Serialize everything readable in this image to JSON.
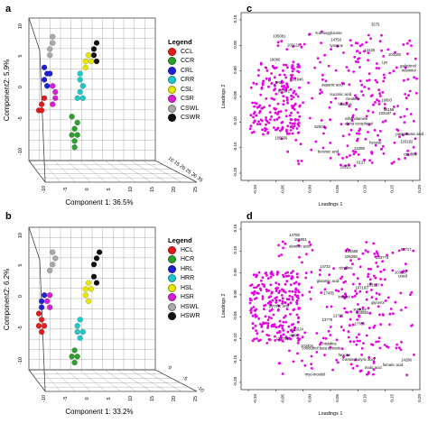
{
  "panels": {
    "a": {
      "letter": "a",
      "xlabel": "Component 1: 36.5%",
      "ylabel": "Component2: 5.9%",
      "legend_title": "Legend",
      "legend": [
        {
          "name": "CCL",
          "color": "#e41a1c"
        },
        {
          "name": "CCR",
          "color": "#2ca02c"
        },
        {
          "name": "CRL",
          "color": "#1f1fd6"
        },
        {
          "name": "CRR",
          "color": "#1fc8c8"
        },
        {
          "name": "CSL",
          "color": "#e6e600"
        },
        {
          "name": "CSR",
          "color": "#d61fd6"
        },
        {
          "name": "CSWL",
          "color": "#a9a9a9"
        },
        {
          "name": "CSWR",
          "color": "#111111"
        }
      ],
      "xticks": [
        "-10",
        "-5",
        "0",
        "5",
        "10",
        "15",
        "20",
        "25"
      ],
      "yticks": [
        "-10",
        "-5",
        "0",
        "5",
        "10"
      ],
      "zticks": [
        "10",
        "15",
        "20",
        "25",
        "30",
        "35"
      ]
    },
    "b": {
      "letter": "b",
      "xlabel": "Component 1: 33.2%",
      "ylabel": "Component2: 6.2%",
      "legend_title": "Legend",
      "legend": [
        {
          "name": "HCL",
          "color": "#e41a1c"
        },
        {
          "name": "HCR",
          "color": "#2ca02c"
        },
        {
          "name": "HRL",
          "color": "#1f1fd6"
        },
        {
          "name": "HRR",
          "color": "#1fc8c8"
        },
        {
          "name": "HSL",
          "color": "#e6e600"
        },
        {
          "name": "HSR",
          "color": "#d61fd6"
        },
        {
          "name": "HSWL",
          "color": "#a9a9a9"
        },
        {
          "name": "HSWR",
          "color": "#111111"
        }
      ],
      "xticks": [
        "-10",
        "-5",
        "0",
        "5",
        "10",
        "15",
        "20",
        "25"
      ],
      "yticks": [
        "-10",
        "-5",
        "0",
        "5",
        "10"
      ],
      "zticks": [
        "0",
        "-5",
        "-10"
      ]
    },
    "c": {
      "letter": "c",
      "xlabel": "Loadings 1",
      "ylabel": "Loadings 2",
      "xticks": [
        "-0.10",
        "-0.05",
        "0.00",
        "0.05",
        "0.10",
        "0.15",
        "0.20"
      ],
      "yticks": [
        "-0.20",
        "-0.15",
        "-0.10",
        "-0.05",
        "0.00",
        "0.05",
        "0.10"
      ],
      "annotations": [
        "3275",
        "6-deoxyglucose",
        "105081",
        "14750",
        "tyrosine",
        "103121",
        "12426",
        "103160",
        "16060",
        "Lys",
        "galactinol",
        "mannitol",
        "81646",
        "pan",
        "aspartic acid",
        "103172",
        "succinic acid",
        "creatine",
        "16093",
        "histidine",
        "65156",
        "103187",
        "ethanolamine",
        "alpha tocopherol",
        "62504",
        "pantothenic acid",
        "105556",
        "hexose",
        "103182",
        "22288",
        "benzoic acid",
        "citrulline",
        "6127",
        "18225"
      ]
    },
    "d": {
      "letter": "d",
      "xlabel": "Loadings 1",
      "ylabel": "Loadings 2",
      "xticks": [
        "-0.10",
        "-0.05",
        "0.00",
        "0.05",
        "0.10",
        "0.15",
        "0.20"
      ],
      "yticks": [
        "-0.20",
        "-0.15",
        "-0.10",
        "-0.05",
        "0.00",
        "0.05",
        "0.10",
        "0.15"
      ],
      "annotations": [
        "14750",
        "105081",
        "alantoic acid",
        "62?17",
        "131558",
        "106266",
        "133??4",
        "14722",
        "citrulline",
        "103187",
        "uracil",
        "glutamic acid",
        "103127",
        "107183",
        "17435",
        "inositol",
        "glycerol",
        "glycolic acid",
        "sucrose",
        "103082",
        "11??6",
        "13??0",
        "1??86",
        "115524",
        "urate",
        "13?796",
        "histidine",
        "102404",
        "conduritol beta epoxide",
        "hexose",
        "14296",
        "4-aminobutyric acid",
        "fumaric acid",
        "malic acid",
        "myo-inositol"
      ]
    }
  },
  "chart_data": [
    {
      "type": "scatter",
      "title": "",
      "xlabel": "Component 1: 36.5%",
      "ylabel": "Component2: 5.9%",
      "xlim": [
        -10,
        25
      ],
      "ylim": [
        -10,
        10
      ],
      "series": [
        {
          "name": "CCL",
          "color": "#e41a1c",
          "points": [
            [
              -9,
              -3
            ],
            [
              -8,
              -2
            ],
            [
              -7,
              -1
            ],
            [
              -8,
              -3
            ]
          ]
        },
        {
          "name": "CCR",
          "color": "#2ca02c",
          "points": [
            [
              3,
              -7
            ],
            [
              4,
              -8
            ],
            [
              4,
              -6
            ],
            [
              5,
              -7
            ],
            [
              5,
              -5
            ],
            [
              3,
              -4
            ],
            [
              4,
              -9
            ]
          ]
        },
        {
          "name": "CRL",
          "color": "#1f1fd6",
          "points": [
            [
              -7,
              2
            ],
            [
              -6,
              3
            ],
            [
              -7,
              4
            ],
            [
              -6,
              1
            ],
            [
              -5,
              3
            ]
          ]
        },
        {
          "name": "CRR",
          "color": "#1fc8c8",
          "points": [
            [
              6,
              2
            ],
            [
              7,
              1
            ],
            [
              6,
              0
            ],
            [
              5,
              -1
            ],
            [
              7,
              -1
            ],
            [
              6,
              3
            ]
          ]
        },
        {
          "name": "CSL",
          "color": "#e6e600",
          "points": [
            [
              8,
              5
            ],
            [
              9,
              6
            ],
            [
              8,
              4
            ],
            [
              10,
              5
            ]
          ]
        },
        {
          "name": "CSR",
          "color": "#d61fd6",
          "points": [
            [
              -3,
              0
            ],
            [
              -4,
              1
            ],
            [
              -3,
              -1
            ],
            [
              -4,
              -2
            ]
          ]
        },
        {
          "name": "CSWL",
          "color": "#a9a9a9",
          "points": [
            [
              -5,
              7
            ],
            [
              -4,
              8
            ],
            [
              -5,
              6
            ],
            [
              -4,
              9
            ]
          ]
        },
        {
          "name": "CSWR",
          "color": "#111111",
          "points": [
            [
              11,
              7
            ],
            [
              12,
              8
            ],
            [
              11,
              6
            ],
            [
              12,
              5
            ]
          ]
        }
      ]
    },
    {
      "type": "scatter",
      "title": "",
      "xlabel": "Component 1: 33.2%",
      "ylabel": "Component2: 6.2%",
      "xlim": [
        -10,
        25
      ],
      "ylim": [
        -10,
        10
      ],
      "series": [
        {
          "name": "HCL",
          "color": "#e41a1c",
          "points": [
            [
              -9,
              -4
            ],
            [
              -8,
              -3
            ],
            [
              -9,
              -2
            ],
            [
              -8,
              -5
            ],
            [
              -7,
              -4
            ]
          ]
        },
        {
          "name": "HCR",
          "color": "#2ca02c",
          "points": [
            [
              3,
              -9
            ],
            [
              4,
              -8
            ],
            [
              5,
              -9
            ],
            [
              4,
              -10
            ]
          ]
        },
        {
          "name": "HRL",
          "color": "#1f1fd6",
          "points": [
            [
              -8,
              0
            ],
            [
              -7,
              1
            ],
            [
              -8,
              -1
            ]
          ]
        },
        {
          "name": "HRR",
          "color": "#1fc8c8",
          "points": [
            [
              5,
              -5
            ],
            [
              6,
              -6
            ],
            [
              5,
              -4
            ],
            [
              6,
              -3
            ],
            [
              7,
              -5
            ]
          ]
        },
        {
          "name": "HSL",
          "color": "#e6e600",
          "points": [
            [
              8,
              2
            ],
            [
              9,
              3
            ],
            [
              8,
              1
            ],
            [
              9,
              0
            ],
            [
              10,
              2
            ]
          ]
        },
        {
          "name": "HSR",
          "color": "#d61fd6",
          "points": [
            [
              -5,
              -1
            ],
            [
              -6,
              0
            ],
            [
              -5,
              1
            ]
          ]
        },
        {
          "name": "HSWL",
          "color": "#a9a9a9",
          "points": [
            [
              -4,
              6
            ],
            [
              -3,
              7
            ],
            [
              -5,
              5
            ],
            [
              -4,
              8
            ]
          ]
        },
        {
          "name": "HSWR",
          "color": "#111111",
          "points": [
            [
              11,
              6
            ],
            [
              12,
              7
            ],
            [
              13,
              8
            ],
            [
              11,
              4
            ],
            [
              12,
              3
            ]
          ]
        }
      ]
    },
    {
      "type": "scatter",
      "title": "",
      "xlabel": "Loadings 1",
      "ylabel": "Loadings 2",
      "xlim": [
        -0.12,
        0.22
      ],
      "ylim": [
        -0.22,
        0.12
      ],
      "series": [
        {
          "color": "#e600e6",
          "n_points": 420
        }
      ]
    },
    {
      "type": "scatter",
      "title": "",
      "xlabel": "Loadings 1",
      "ylabel": "Loadings 2",
      "xlim": [
        -0.12,
        0.22
      ],
      "ylim": [
        -0.22,
        0.16
      ],
      "series": [
        {
          "color": "#e600e6",
          "n_points": 460
        }
      ]
    }
  ]
}
